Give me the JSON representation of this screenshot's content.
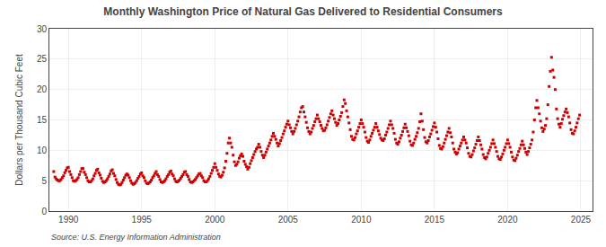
{
  "chart_data": {
    "type": "scatter",
    "title": "Monthly Washington Price of Natural Gas Delivered to Residential Consumers",
    "y_label": "Dollars per Thousand Cubic Feet",
    "annotations": [
      "Source: U.S. Energy Information Administration"
    ],
    "color": "#cc0000",
    "marker": "square",
    "grid": true,
    "xlim": [
      1988.7,
      2025.8
    ],
    "ylim": [
      0,
      30
    ],
    "xticks": [
      1990,
      1995,
      2000,
      2005,
      2010,
      2015,
      2020,
      2025
    ],
    "yticks": [
      0,
      5,
      10,
      15,
      20,
      25,
      30
    ],
    "x": [
      1989.0,
      1989.083,
      1989.167,
      1989.25,
      1989.333,
      1989.417,
      1989.5,
      1989.583,
      1989.667,
      1989.75,
      1989.833,
      1989.917,
      1990.0,
      1990.083,
      1990.167,
      1990.25,
      1990.333,
      1990.417,
      1990.5,
      1990.583,
      1990.667,
      1990.75,
      1990.833,
      1990.917,
      1991.0,
      1991.083,
      1991.167,
      1991.25,
      1991.333,
      1991.417,
      1991.5,
      1991.583,
      1991.667,
      1991.75,
      1991.833,
      1991.917,
      1992.0,
      1992.083,
      1992.167,
      1992.25,
      1992.333,
      1992.417,
      1992.5,
      1992.583,
      1992.667,
      1992.75,
      1992.833,
      1992.917,
      1993.0,
      1993.083,
      1993.167,
      1993.25,
      1993.333,
      1993.417,
      1993.5,
      1993.583,
      1993.667,
      1993.75,
      1993.833,
      1993.917,
      1994.0,
      1994.083,
      1994.167,
      1994.25,
      1994.333,
      1994.417,
      1994.5,
      1994.583,
      1994.667,
      1994.75,
      1994.833,
      1994.917,
      1995.0,
      1995.083,
      1995.167,
      1995.25,
      1995.333,
      1995.417,
      1995.5,
      1995.583,
      1995.667,
      1995.75,
      1995.833,
      1995.917,
      1996.0,
      1996.083,
      1996.167,
      1996.25,
      1996.333,
      1996.417,
      1996.5,
      1996.583,
      1996.667,
      1996.75,
      1996.833,
      1996.917,
      1997.0,
      1997.083,
      1997.167,
      1997.25,
      1997.333,
      1997.417,
      1997.5,
      1997.583,
      1997.667,
      1997.75,
      1997.833,
      1997.917,
      1998.0,
      1998.083,
      1998.167,
      1998.25,
      1998.333,
      1998.417,
      1998.5,
      1998.583,
      1998.667,
      1998.75,
      1998.833,
      1998.917,
      1999.0,
      1999.083,
      1999.167,
      1999.25,
      1999.333,
      1999.417,
      1999.5,
      1999.583,
      1999.667,
      1999.75,
      1999.833,
      1999.917,
      2000.0,
      2000.083,
      2000.167,
      2000.25,
      2000.333,
      2000.417,
      2000.5,
      2000.583,
      2000.667,
      2000.75,
      2000.833,
      2000.917,
      2001.0,
      2001.083,
      2001.167,
      2001.25,
      2001.333,
      2001.417,
      2001.5,
      2001.583,
      2001.667,
      2001.75,
      2001.833,
      2001.917,
      2002.0,
      2002.083,
      2002.167,
      2002.25,
      2002.333,
      2002.417,
      2002.5,
      2002.583,
      2002.667,
      2002.75,
      2002.833,
      2002.917,
      2003.0,
      2003.083,
      2003.167,
      2003.25,
      2003.333,
      2003.417,
      2003.5,
      2003.583,
      2003.667,
      2003.75,
      2003.833,
      2003.917,
      2004.0,
      2004.083,
      2004.167,
      2004.25,
      2004.333,
      2004.417,
      2004.5,
      2004.583,
      2004.667,
      2004.75,
      2004.833,
      2004.917,
      2005.0,
      2005.083,
      2005.167,
      2005.25,
      2005.333,
      2005.417,
      2005.5,
      2005.583,
      2005.667,
      2005.75,
      2005.833,
      2005.917,
      2006.0,
      2006.083,
      2006.167,
      2006.25,
      2006.333,
      2006.417,
      2006.5,
      2006.583,
      2006.667,
      2006.75,
      2006.833,
      2006.917,
      2007.0,
      2007.083,
      2007.167,
      2007.25,
      2007.333,
      2007.417,
      2007.5,
      2007.583,
      2007.667,
      2007.75,
      2007.833,
      2007.917,
      2008.0,
      2008.083,
      2008.167,
      2008.25,
      2008.333,
      2008.417,
      2008.5,
      2008.583,
      2008.667,
      2008.75,
      2008.833,
      2008.917,
      2009.0,
      2009.083,
      2009.167,
      2009.25,
      2009.333,
      2009.417,
      2009.5,
      2009.583,
      2009.667,
      2009.75,
      2009.833,
      2009.917,
      2010.0,
      2010.083,
      2010.167,
      2010.25,
      2010.333,
      2010.417,
      2010.5,
      2010.583,
      2010.667,
      2010.75,
      2010.833,
      2010.917,
      2011.0,
      2011.083,
      2011.167,
      2011.25,
      2011.333,
      2011.417,
      2011.5,
      2011.583,
      2011.667,
      2011.75,
      2011.833,
      2011.917,
      2012.0,
      2012.083,
      2012.167,
      2012.25,
      2012.333,
      2012.417,
      2012.5,
      2012.583,
      2012.667,
      2012.75,
      2012.833,
      2012.917,
      2013.0,
      2013.083,
      2013.167,
      2013.25,
      2013.333,
      2013.417,
      2013.5,
      2013.583,
      2013.667,
      2013.75,
      2013.833,
      2013.917,
      2014.0,
      2014.083,
      2014.167,
      2014.25,
      2014.333,
      2014.417,
      2014.5,
      2014.583,
      2014.667,
      2014.75,
      2014.833,
      2014.917,
      2015.0,
      2015.083,
      2015.167,
      2015.25,
      2015.333,
      2015.417,
      2015.5,
      2015.583,
      2015.667,
      2015.75,
      2015.833,
      2015.917,
      2016.0,
      2016.083,
      2016.167,
      2016.25,
      2016.333,
      2016.417,
      2016.5,
      2016.583,
      2016.667,
      2016.75,
      2016.833,
      2016.917,
      2017.0,
      2017.083,
      2017.167,
      2017.25,
      2017.333,
      2017.417,
      2017.5,
      2017.583,
      2017.667,
      2017.75,
      2017.833,
      2017.917,
      2018.0,
      2018.083,
      2018.167,
      2018.25,
      2018.333,
      2018.417,
      2018.5,
      2018.583,
      2018.667,
      2018.75,
      2018.833,
      2018.917,
      2019.0,
      2019.083,
      2019.167,
      2019.25,
      2019.333,
      2019.417,
      2019.5,
      2019.583,
      2019.667,
      2019.75,
      2019.833,
      2019.917,
      2020.0,
      2020.083,
      2020.167,
      2020.25,
      2020.333,
      2020.417,
      2020.5,
      2020.583,
      2020.667,
      2020.75,
      2020.833,
      2020.917,
      2021.0,
      2021.083,
      2021.167,
      2021.25,
      2021.333,
      2021.417,
      2021.5,
      2021.583,
      2021.667,
      2021.75,
      2021.833,
      2021.917,
      2022.0,
      2022.083,
      2022.167,
      2022.25,
      2022.333,
      2022.417,
      2022.5,
      2022.583,
      2022.667,
      2022.75,
      2022.833,
      2022.917,
      2023.0,
      2023.083,
      2023.167,
      2023.25,
      2023.333,
      2023.417,
      2023.5,
      2023.583,
      2023.667,
      2023.75,
      2023.833,
      2023.917,
      2024.0,
      2024.083,
      2024.167,
      2024.25,
      2024.333,
      2024.417,
      2024.5,
      2024.583,
      2024.667,
      2024.75,
      2024.833,
      2024.917
    ],
    "values": [
      6.5,
      5.6,
      5.3,
      5.1,
      5.0,
      5.0,
      5.2,
      5.5,
      5.8,
      6.3,
      6.7,
      7.1,
      7.2,
      6.5,
      6.0,
      5.5,
      5.0,
      4.9,
      5.0,
      5.2,
      5.5,
      6.0,
      6.5,
      7.0,
      7.0,
      6.4,
      6.0,
      5.5,
      5.0,
      4.8,
      4.8,
      5.0,
      5.3,
      5.8,
      6.2,
      6.7,
      6.9,
      6.3,
      5.9,
      5.4,
      4.9,
      4.7,
      4.8,
      5.0,
      5.3,
      5.7,
      6.1,
      6.6,
      6.8,
      6.2,
      5.8,
      5.2,
      4.7,
      4.4,
      4.3,
      4.4,
      4.7,
      5.1,
      5.5,
      5.9,
      6.1,
      5.9,
      5.5,
      5.0,
      4.6,
      4.4,
      4.5,
      4.7,
      5.0,
      5.4,
      5.7,
      6.1,
      6.3,
      5.8,
      5.5,
      5.0,
      4.6,
      4.5,
      4.6,
      4.8,
      5.1,
      5.5,
      5.8,
      6.2,
      6.5,
      6.0,
      5.7,
      5.2,
      4.8,
      4.7,
      4.8,
      5.0,
      5.3,
      5.7,
      6.0,
      6.4,
      6.6,
      6.1,
      5.8,
      5.3,
      4.9,
      4.8,
      4.9,
      5.1,
      5.4,
      5.7,
      6.0,
      6.4,
      6.5,
      6.0,
      5.7,
      5.2,
      4.8,
      4.7,
      4.8,
      5.0,
      5.2,
      5.5,
      5.8,
      6.1,
      6.2,
      5.8,
      5.5,
      5.0,
      4.8,
      4.8,
      5.0,
      5.3,
      5.7,
      6.2,
      6.7,
      7.2,
      7.8,
      7.2,
      6.7,
      6.1,
      5.7,
      5.6,
      5.9,
      6.4,
      7.1,
      8.2,
      9.5,
      11.2,
      12.0,
      11.2,
      10.5,
      9.2,
      8.1,
      7.5,
      7.7,
      8.1,
      8.7,
      9.1,
      9.4,
      9.0,
      8.2,
      7.7,
      7.3,
      6.9,
      7.2,
      7.8,
      8.3,
      8.8,
      9.3,
      9.8,
      10.2,
      10.5,
      11.0,
      10.5,
      9.8,
      9.2,
      8.8,
      9.2,
      9.7,
      10.2,
      10.7,
      11.2,
      11.7,
      12.3,
      12.8,
      12.3,
      11.8,
      11.2,
      10.7,
      11.1,
      11.6,
      12.1,
      12.7,
      13.2,
      13.8,
      14.3,
      14.8,
      14.2,
      13.7,
      13.1,
      12.7,
      13.1,
      13.6,
      14.2,
      14.8,
      15.5,
      16.3,
      17.0,
      17.2,
      16.3,
      15.5,
      14.6,
      13.7,
      13.1,
      12.7,
      13.0,
      13.6,
      14.1,
      14.7,
      15.2,
      15.8,
      15.2,
      14.7,
      14.1,
      13.6,
      13.2,
      13.3,
      13.7,
      14.2,
      14.8,
      15.4,
      16.0,
      16.5,
      15.8,
      15.2,
      14.6,
      14.1,
      14.4,
      15.0,
      15.6,
      16.2,
      17.2,
      18.3,
      17.7,
      16.5,
      15.5,
      14.5,
      13.4,
      12.3,
      11.8,
      11.7,
      12.1,
      12.7,
      13.2,
      13.8,
      14.4,
      15.0,
      14.4,
      13.8,
      13.0,
      12.1,
      11.5,
      11.3,
      11.7,
      12.3,
      12.8,
      13.3,
      13.8,
      14.4,
      13.8,
      13.2,
      12.6,
      12.0,
      11.7,
      11.6,
      11.9,
      12.5,
      13.0,
      13.6,
      14.2,
      14.8,
      14.2,
      13.6,
      12.8,
      11.8,
      11.2,
      11.0,
      11.4,
      12.0,
      12.5,
      13.1,
      13.7,
      14.3,
      13.7,
      13.1,
      12.4,
      11.5,
      10.9,
      10.8,
      11.2,
      11.8,
      12.3,
      12.9,
      13.6,
      14.7,
      16.0,
      14.8,
      13.4,
      12.1,
      11.4,
      11.2,
      11.6,
      12.2,
      12.7,
      13.3,
      13.9,
      14.5,
      13.8,
      13.0,
      11.9,
      10.8,
      10.3,
      10.2,
      10.6,
      11.2,
      11.8,
      12.4,
      13.0,
      13.6,
      12.9,
      12.2,
      11.2,
      10.2,
      9.7,
      9.4,
      9.6,
      10.2,
      10.7,
      11.2,
      11.7,
      12.2,
      11.7,
      11.2,
      10.4,
      9.5,
      9.0,
      8.9,
      9.3,
      9.9,
      10.4,
      11.0,
      11.6,
      12.2,
      11.6,
      10.9,
      10.2,
      9.3,
      8.8,
      8.6,
      8.9,
      9.5,
      10.0,
      10.5,
      11.1,
      11.7,
      11.1,
      10.5,
      9.8,
      9.0,
      8.6,
      8.5,
      8.9,
      9.4,
      10.0,
      10.5,
      11.1,
      11.7,
      11.1,
      10.5,
      9.7,
      8.9,
      8.4,
      8.3,
      8.7,
      9.2,
      9.8,
      10.3,
      10.9,
      11.5,
      10.9,
      10.3,
      9.7,
      9.3,
      9.8,
      10.4,
      11.0,
      11.7,
      13.0,
      15.0,
      17.0,
      18.2,
      17.0,
      16.0,
      14.8,
      13.7,
      13.1,
      13.5,
      14.1,
      15.2,
      17.5,
      20.5,
      23.0,
      25.3,
      23.2,
      22.0,
      20.0,
      16.8,
      15.2,
      14.3,
      13.8,
      14.4,
      15.1,
      15.7,
      16.3,
      16.8,
      16.2,
      15.5,
      14.5,
      13.4,
      12.8,
      12.7,
      13.2,
      13.8,
      14.5,
      15.2,
      15.8
    ]
  }
}
